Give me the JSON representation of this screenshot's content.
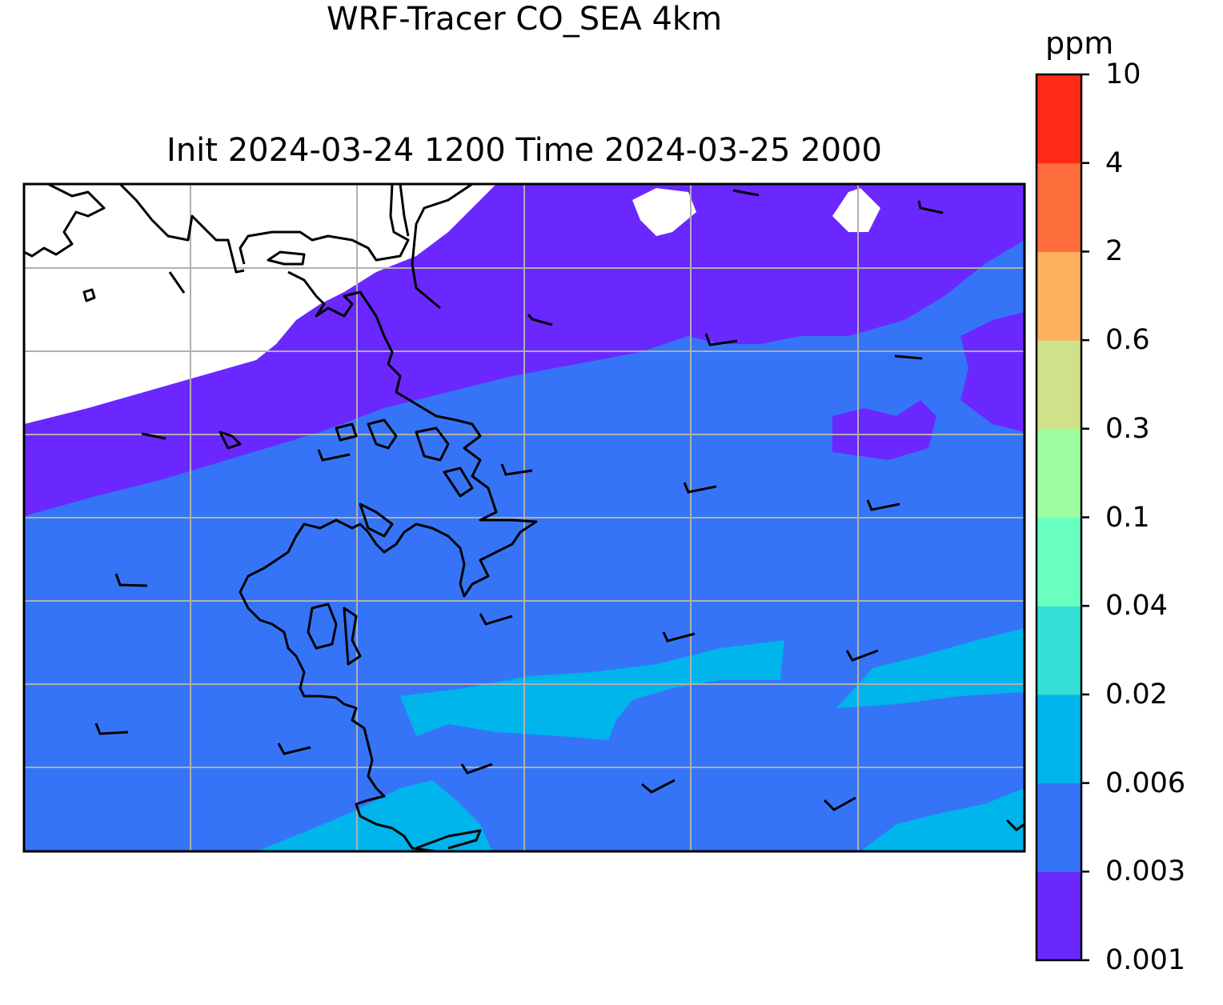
{
  "title": {
    "line1": "WRF-Tracer CO_SEA 4km",
    "line2": "Init 2024-03-24 1200 Time 2024-03-25 2000"
  },
  "colorbar": {
    "unit": "ppm",
    "ticks": [
      "0.001",
      "0.003",
      "0.006",
      "0.02",
      "0.04",
      "0.1",
      "0.3",
      "0.6",
      "2",
      "4",
      "10"
    ],
    "colors": [
      "#6a28ff",
      "#3674f7",
      "#00b4ec",
      "#33e0d6",
      "#69ffbf",
      "#9cfe9e",
      "#cfe18a",
      "#ffb05f",
      "#ff6e3d",
      "#ff2a17"
    ]
  },
  "map": {
    "fill_colors": {
      "band_low": "#6a28ff",
      "band_mid": "#3674f7",
      "band_high": "#00b4ec",
      "no_data": "#ffffff"
    },
    "gridlines": true,
    "coastline_color": "#000000",
    "wind_barbs": true
  }
}
